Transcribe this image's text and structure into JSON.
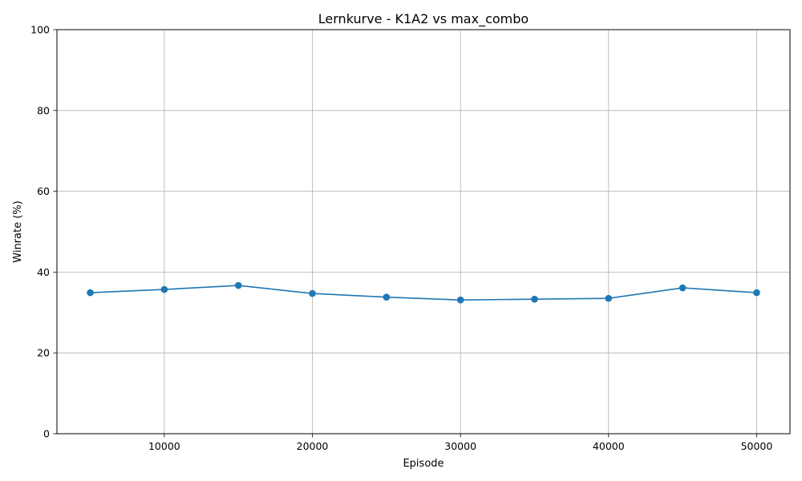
{
  "chart_data": {
    "type": "line",
    "title": "Lernkurve - K1A2 vs max_combo",
    "xlabel": "Episode",
    "ylabel": "Winrate (%)",
    "xlim": [
      2750,
      52250
    ],
    "ylim": [
      0,
      100
    ],
    "x_ticks": [
      10000,
      20000,
      30000,
      40000,
      50000
    ],
    "y_ticks": [
      0,
      20,
      40,
      60,
      80,
      100
    ],
    "grid": true,
    "marker": "circle",
    "series": [
      {
        "color": "#1f77b4",
        "x": [
          5000,
          10000,
          15000,
          20000,
          25000,
          30000,
          35000,
          40000,
          45000,
          50000
        ],
        "y": [
          34.9,
          35.7,
          36.7,
          34.7,
          33.8,
          33.1,
          33.3,
          33.5,
          36.1,
          34.9
        ]
      }
    ]
  }
}
